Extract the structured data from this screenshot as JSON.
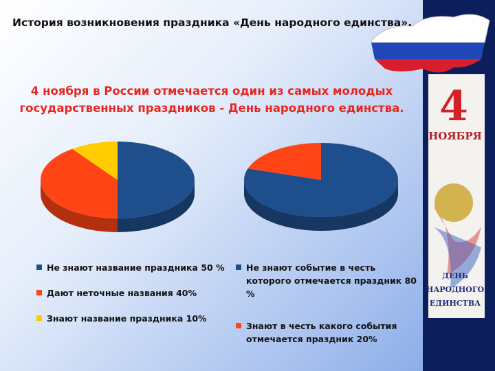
{
  "slide": {
    "title": "История возникновения праздника «День народного единства».",
    "subtitle": "4 ноября в России отмечается один  из самых молодых государственных праздников - День народного единства."
  },
  "chart_data": [
    {
      "type": "pie",
      "categories": [
        "Не знают название праздника 50 %",
        "Дают неточные названия 40%",
        "Знают название праздника 10%"
      ],
      "values": [
        50,
        40,
        10
      ],
      "colors": [
        "#1f4e8c",
        "#ff4415",
        "#ffcc00"
      ]
    },
    {
      "type": "pie",
      "categories": [
        "Не знают событие в честь которого отмечается  праздник 80 %",
        "Знают в честь какого события отмечается  праздник 20%"
      ],
      "values": [
        80,
        20
      ],
      "colors": [
        "#1f4e8c",
        "#ff4415"
      ]
    }
  ],
  "poster": {
    "day": "4",
    "month": "НОЯБРЯ",
    "caption": [
      "ДЕНЬ",
      "НАРОДНОГО",
      "ЕДИНСТВА"
    ]
  }
}
